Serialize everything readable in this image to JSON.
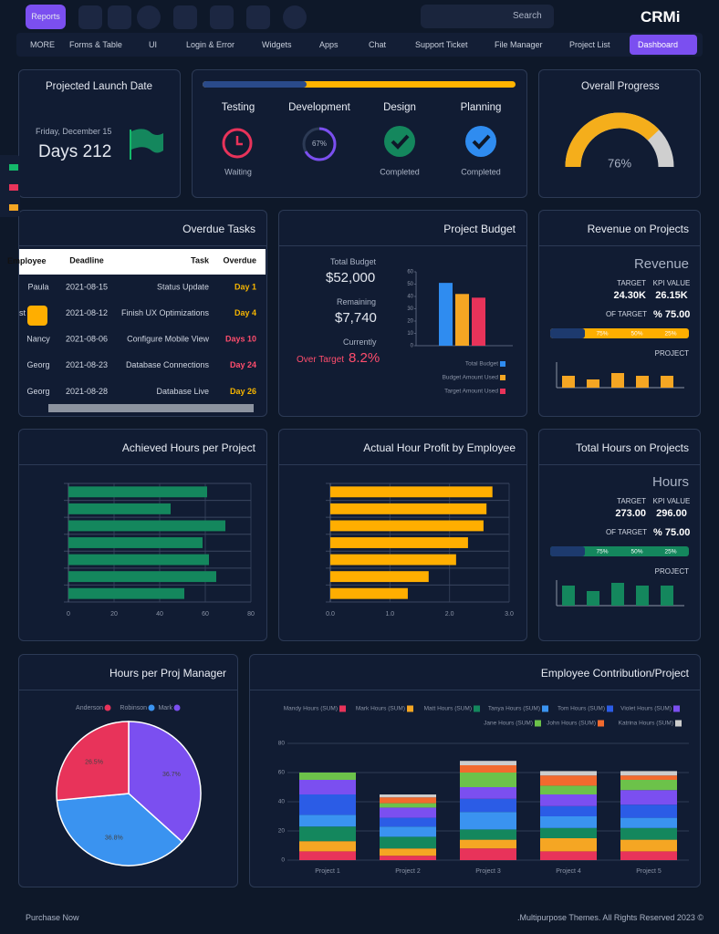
{
  "topbar": {
    "reports": "Reports",
    "search": "Search",
    "logo": "CRMi"
  },
  "nav": [
    "MORE",
    "Forms & Table",
    "UI",
    "Login & Error",
    "Widgets",
    "Apps",
    "Chat",
    "Support Ticket",
    "File Manager",
    "Project List",
    "Dashboard"
  ],
  "launch": {
    "title": "Projected Launch Date",
    "date": "Friday, December 15",
    "days": "Days 212"
  },
  "stages": [
    {
      "name": "Testing",
      "status": "Waiting"
    },
    {
      "name": "Development",
      "progress": {
        "value": 67,
        "label": "67%"
      }
    },
    {
      "name": "Design",
      "status": "Completed"
    },
    {
      "name": "Planning",
      "status": "Completed"
    }
  ],
  "overall": {
    "title": "Overall Progress",
    "value": 76,
    "label": "76%"
  },
  "overdue": {
    "title": "Overdue Tasks",
    "columns": [
      "Employee",
      "Deadline",
      "Task",
      "Overdue"
    ],
    "rows": [
      [
        "Paula",
        "2021-08-15",
        "Status Update",
        "Day 1"
      ],
      [
        "st",
        "2021-08-12",
        "Finish UX Optimizations",
        "Day 4"
      ],
      [
        "Nancy",
        "2021-08-06",
        "Configure Mobile View",
        "Days 10"
      ],
      [
        "Georg",
        "2021-08-23",
        "Database Connections",
        "Day 24"
      ],
      [
        "Georg",
        "2021-08-28",
        "Database Live",
        "Day 26"
      ]
    ]
  },
  "budget": {
    "title": "Project Budget",
    "total_label": "Total Budget",
    "total": "$52,000",
    "remaining_label": "Remaining",
    "remaining": "$7,740",
    "currently": "Currently",
    "over_label": "Over Target",
    "over": "8.2%",
    "chart": {
      "type": "bar",
      "ylim": [
        0,
        60
      ],
      "yticks": [
        0,
        10,
        20,
        30,
        40,
        50,
        60
      ],
      "series": [
        {
          "name": "Total Budget",
          "color": "#2f8cf0",
          "values": [
            51
          ]
        },
        {
          "name": "Budget Amount Used",
          "color": "#f5a623",
          "values": [
            42
          ]
        },
        {
          "name": "Target Amount Used",
          "color": "#e8335a",
          "values": [
            39
          ]
        }
      ]
    }
  },
  "revenue": {
    "title": "Revenue on Projects",
    "heading": "Revenue",
    "target_label": "TARGET",
    "target": "24.30K",
    "kpi_label": "KPI VALUE",
    "kpi": "26.15K",
    "of_target_label": "OF TARGET",
    "of_target": "% 75.00",
    "segments": [
      "75%",
      "50%",
      "25%"
    ],
    "project_label": "PROJECT",
    "chart": {
      "type": "bar",
      "color": "#f5a623",
      "values": [
        13,
        9,
        16,
        13,
        13
      ]
    }
  },
  "achieved": {
    "title": "Achieved Hours per Project",
    "chart": {
      "type": "hbar",
      "color": "#14875d",
      "categories": [
        null,
        null,
        null,
        null,
        null,
        null,
        null
      ],
      "values": [
        60.8,
        44.8,
        68.8,
        58.8,
        61.6,
        64.8,
        50.8
      ],
      "xlim": [
        0,
        80
      ],
      "xticks": [
        0,
        20,
        40,
        60,
        80
      ]
    }
  },
  "profit": {
    "title": "Actual Hour Profit by Employee",
    "chart": {
      "type": "hbar",
      "color": "#ffae00",
      "categories": [
        null,
        null,
        null,
        null,
        null,
        null,
        null
      ],
      "values": [
        2.72,
        2.62,
        2.57,
        2.31,
        2.11,
        1.65,
        1.3
      ],
      "xlim": [
        0,
        3
      ],
      "xticks": [
        {
          "value": 0,
          "label": "0.0"
        },
        {
          "value": 1,
          "label": "1.0"
        },
        {
          "value": 2,
          "label": "2.0"
        },
        {
          "value": 3,
          "label": "3.0"
        }
      ]
    }
  },
  "hours": {
    "title": "Total Hours on Projects",
    "heading": "Hours",
    "target_label": "TARGET",
    "target": "273.00",
    "kpi_label": "KPI VALUE",
    "kpi": "296.00",
    "of_target_label": "OF TARGET",
    "of_target": "% 75.00",
    "segments": [
      "75%",
      "50%",
      "25%"
    ],
    "project_label": "PROJECT",
    "chart": {
      "type": "bar",
      "color": "#14875d",
      "values": [
        22,
        16,
        25,
        22,
        22
      ]
    }
  },
  "managers": {
    "title": "Hours per Proj Manager",
    "chart": {
      "type": "pie",
      "categories": [
        "Anderson",
        "Robinson",
        "Mark"
      ],
      "colors": [
        "#e8335a",
        "#3a93f0",
        "#7b4ff0"
      ],
      "values": [
        26.5,
        36.8,
        36.7
      ],
      "value_labels": [
        "26.5%",
        "36.8%",
        "36.7%"
      ]
    }
  },
  "contribution": {
    "title": "Employee Contribution/Project",
    "chart": {
      "type": "stacked_bar",
      "categories": [
        "Project 1",
        "Project 2",
        "Project 3",
        "Project 4",
        "Project 5"
      ],
      "ylim": [
        0,
        80
      ],
      "yticks": [
        0,
        20,
        40,
        60,
        80
      ],
      "series": [
        {
          "name": "Mandy Hours (SUM)",
          "color": "#e8335a",
          "values": [
            6,
            3,
            8,
            6,
            6
          ]
        },
        {
          "name": "Mark Hours (SUM)",
          "color": "#f5a623",
          "values": [
            7,
            5,
            6,
            9,
            8
          ]
        },
        {
          "name": "Matt Hours (SUM)",
          "color": "#14875d",
          "values": [
            10,
            8,
            7,
            7,
            8
          ]
        },
        {
          "name": "Tanya Hours (SUM)",
          "color": "#3a93f0",
          "values": [
            8,
            7,
            12,
            8,
            7
          ]
        },
        {
          "name": "Tom Hours (SUM)",
          "color": "#2b5ce6",
          "values": [
            14,
            6,
            9,
            7,
            9
          ]
        },
        {
          "name": "Violet Hours (SUM)",
          "color": "#7b4ff0",
          "values": [
            10,
            7,
            8,
            8,
            10
          ]
        },
        {
          "name": "Jane Hours (SUM)",
          "color": "#6cc24a",
          "values": [
            5,
            3,
            10,
            6,
            7
          ]
        },
        {
          "name": "John Hours (SUM)",
          "color": "#f26a2e",
          "values": [
            0,
            4,
            5,
            7,
            3
          ]
        },
        {
          "name": "Katrina Hours (SUM)",
          "color": "#cccccc",
          "values": [
            0,
            2,
            3,
            3,
            3
          ]
        }
      ]
    }
  },
  "footer": {
    "left": "Purchase Now",
    "right": ".Multipurpose Themes. All Rights Reserved 2023 ©"
  }
}
